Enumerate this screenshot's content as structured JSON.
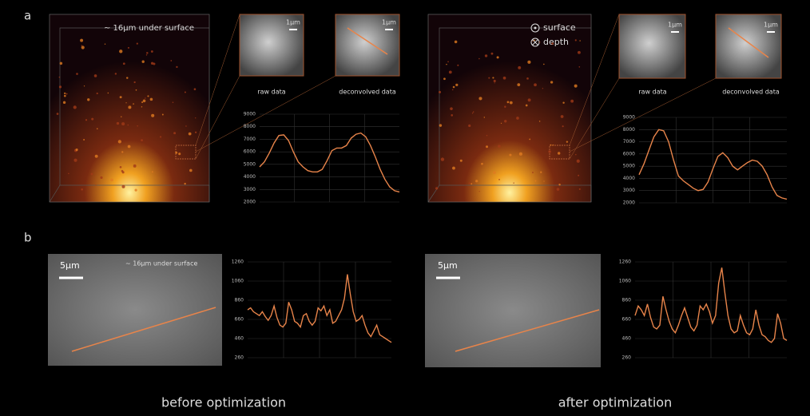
{
  "figure": {
    "panel_a_label": "a",
    "panel_b_label": "b",
    "top_note": "~ 16μm under surface",
    "surface_legend": "surface",
    "depth_legend": "depth",
    "inset_labels": [
      "raw data",
      "deconvolved data",
      "raw data",
      "deconvolved data"
    ],
    "scale_bars": [
      "1μm",
      "1μm",
      "1μm",
      "1μm",
      "5μm",
      "5μm"
    ],
    "bottom_note": "~ 16μm under surface",
    "captions": [
      "before optimization",
      "after optimization"
    ]
  },
  "chart_data": [
    {
      "type": "line",
      "color": "#e8844a",
      "grid": true,
      "ylim": [
        2000,
        9000
      ],
      "yticks": [
        2000,
        3000,
        4000,
        5000,
        6000,
        7000,
        8000,
        9000
      ],
      "values": [
        4800,
        5200,
        5900,
        6700,
        7300,
        7350,
        6900,
        6000,
        5200,
        4800,
        4500,
        4400,
        4400,
        4600,
        5300,
        6100,
        6300,
        6300,
        6500,
        7100,
        7400,
        7500,
        7200,
        6500,
        5600,
        4600,
        3800,
        3200,
        2900,
        2800
      ]
    },
    {
      "type": "line",
      "color": "#e8844a",
      "grid": true,
      "ylim": [
        2000,
        9000
      ],
      "yticks": [
        2000,
        3000,
        4000,
        5000,
        6000,
        7000,
        8000,
        9000
      ],
      "values": [
        4300,
        5200,
        6300,
        7400,
        8000,
        7900,
        7000,
        5500,
        4200,
        3800,
        3500,
        3200,
        3000,
        3100,
        3700,
        4800,
        5800,
        6100,
        5700,
        5000,
        4700,
        5000,
        5300,
        5500,
        5400,
        5000,
        4300,
        3300,
        2600,
        2400,
        2300
      ]
    },
    {
      "type": "line",
      "color": "#e8844a",
      "grid": true,
      "ylim": [
        260,
        1260
      ],
      "yticks": [
        260,
        460,
        660,
        860,
        1060,
        1260
      ],
      "values": [
        760,
        780,
        740,
        720,
        700,
        740,
        690,
        650,
        700,
        800,
        680,
        600,
        580,
        620,
        840,
        760,
        640,
        620,
        580,
        700,
        720,
        640,
        600,
        640,
        780,
        750,
        800,
        700,
        760,
        620,
        640,
        700,
        760,
        880,
        1130,
        920,
        740,
        640,
        660,
        700,
        600,
        520,
        480,
        540,
        600,
        500,
        480,
        460,
        440,
        420
      ]
    },
    {
      "type": "line",
      "color": "#e8844a",
      "grid": true,
      "ylim": [
        260,
        1260
      ],
      "yticks": [
        260,
        460,
        660,
        860,
        1060,
        1260
      ],
      "values": [
        700,
        800,
        760,
        700,
        820,
        680,
        580,
        560,
        600,
        900,
        760,
        640,
        560,
        520,
        600,
        700,
        780,
        680,
        580,
        540,
        600,
        800,
        760,
        820,
        740,
        620,
        700,
        1040,
        1200,
        940,
        700,
        560,
        520,
        540,
        700,
        600,
        520,
        500,
        560,
        760,
        600,
        500,
        480,
        440,
        420,
        460,
        720,
        620,
        460,
        440
      ]
    }
  ]
}
